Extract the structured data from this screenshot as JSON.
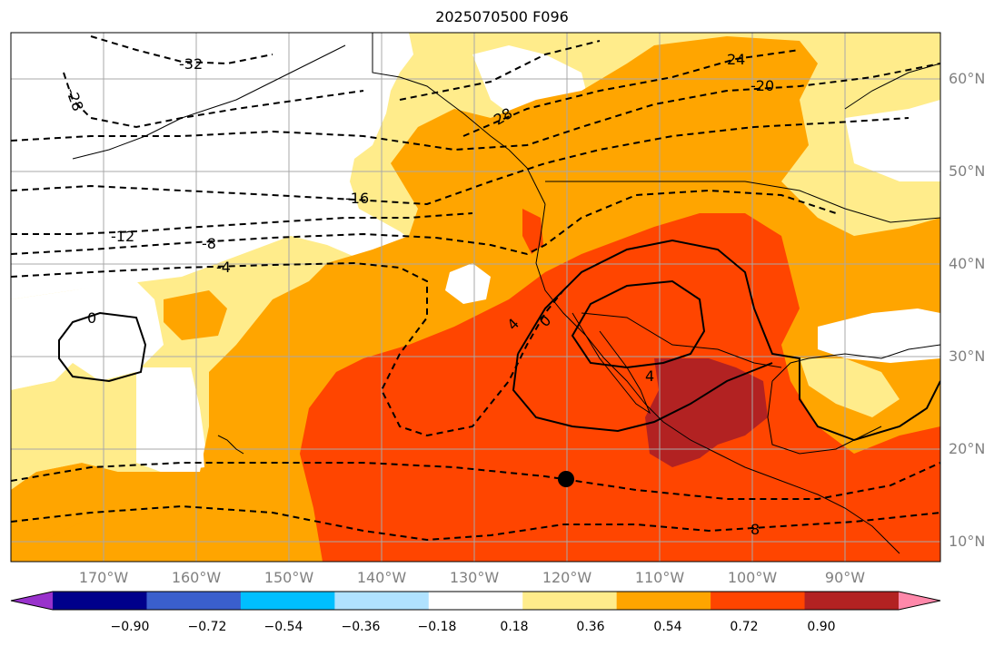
{
  "title": "2025070500 F096",
  "map": {
    "projection": "cylindrical",
    "extent": {
      "lon_west": -180,
      "lon_east": -80,
      "lat_south": 8,
      "lat_north": 65
    },
    "lat_labels": [
      {
        "lat": 60,
        "text": "60°N"
      },
      {
        "lat": 50,
        "text": "50°N"
      },
      {
        "lat": 40,
        "text": "40°N"
      },
      {
        "lat": 30,
        "text": "30°N"
      },
      {
        "lat": 20,
        "text": "20°N"
      },
      {
        "lat": 10,
        "text": "10°N"
      }
    ],
    "lon_labels": [
      {
        "lon": -170,
        "text": "170°W"
      },
      {
        "lon": -160,
        "text": "160°W"
      },
      {
        "lon": -150,
        "text": "150°W"
      },
      {
        "lon": -140,
        "text": "140°W"
      },
      {
        "lon": -130,
        "text": "130°W"
      },
      {
        "lon": -120,
        "text": "120°W"
      },
      {
        "lon": -110,
        "text": "110°W"
      },
      {
        "lon": -100,
        "text": "100°W"
      },
      {
        "lon": -90,
        "text": "90°W"
      }
    ],
    "grid": true,
    "contour_labels": [
      "-32",
      "-28",
      "28",
      "24",
      "-20",
      "-16",
      "-12",
      "-8",
      "-4",
      "0",
      "4",
      "0",
      "4",
      "8"
    ],
    "marker": {
      "lon": -120,
      "lat": 17
    }
  },
  "colorbar": {
    "ticks": [
      "−0.90",
      "−0.72",
      "−0.54",
      "−0.36",
      "−0.18",
      "0.18",
      "0.36",
      "0.54",
      "0.72",
      "0.90"
    ],
    "colors": [
      "#9932cc",
      "#00008b",
      "#3a5fcd",
      "#00bfff",
      "#b0e2ff",
      "#ffffff",
      "#ffec8b",
      "#ffa500",
      "#ff4500",
      "#b22222",
      "#ff88aa"
    ]
  }
}
